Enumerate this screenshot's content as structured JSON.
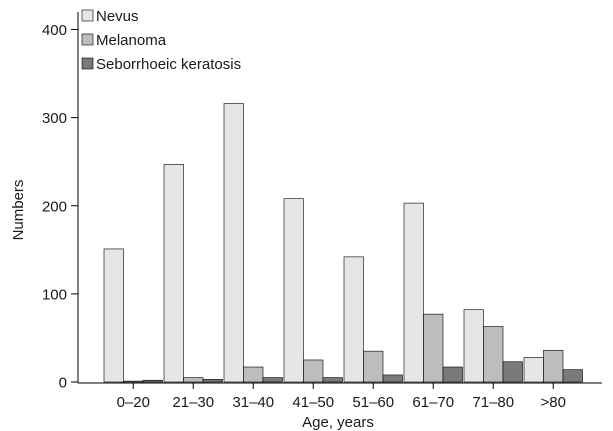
{
  "chart_data": {
    "type": "bar",
    "categories": [
      "0–20",
      "21–30",
      "31–40",
      "41–50",
      "51–60",
      "61–70",
      "71–80",
      ">80"
    ],
    "series": [
      {
        "name": "Nevus",
        "color": "#e6e6e6",
        "values": [
          151,
          247,
          316,
          208,
          142,
          203,
          82,
          28
        ]
      },
      {
        "name": "Melanoma",
        "color": "#bdbdbd",
        "values": [
          1,
          5,
          17,
          25,
          35,
          77,
          63,
          36
        ]
      },
      {
        "name": "Seborrhoeic keratosis",
        "color": "#7a7a7a",
        "values": [
          2,
          3,
          5,
          5,
          8,
          17,
          23,
          14
        ]
      }
    ],
    "xlabel": "Age, years",
    "ylabel": "Numbers",
    "ylim": [
      0,
      420
    ],
    "yticks": [
      "0",
      "100",
      "200",
      "300",
      "400"
    ],
    "ytick_values": [
      0,
      100,
      200,
      300,
      400
    ],
    "grid": false,
    "legend_position": "top-left"
  }
}
